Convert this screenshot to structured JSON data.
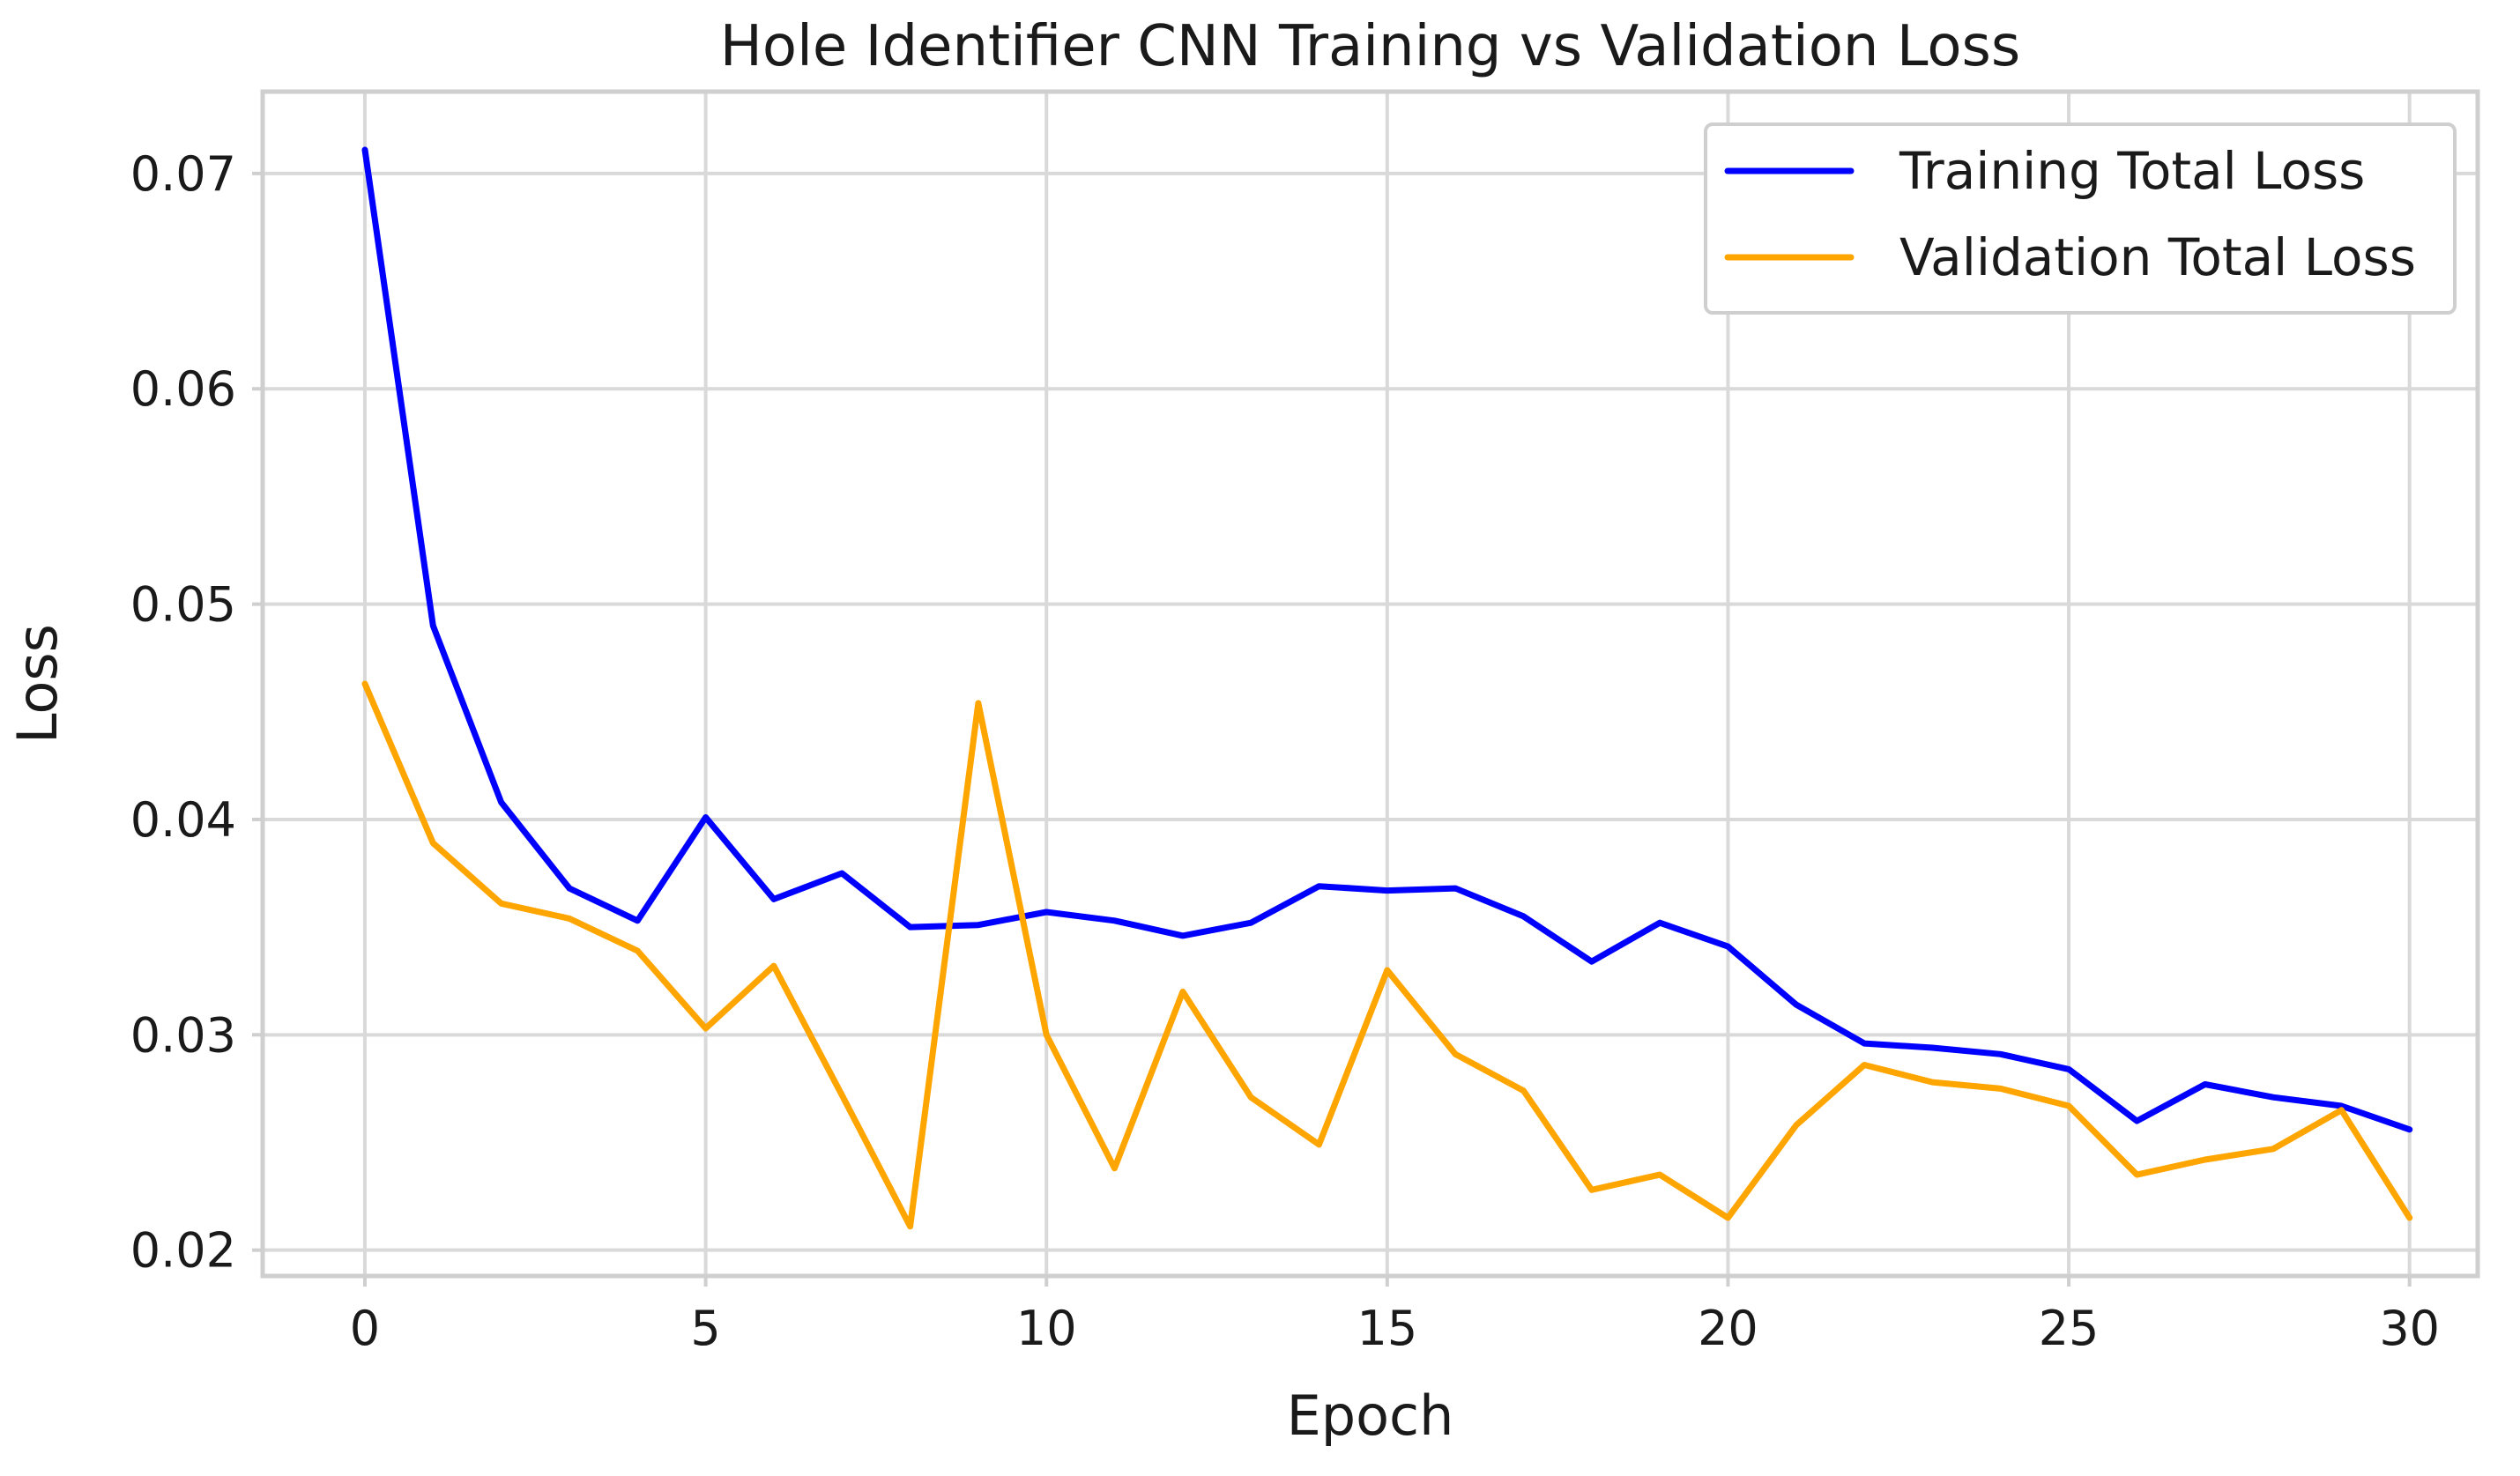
{
  "chart_data": {
    "type": "line",
    "title": "Hole Identifier CNN Training vs Validation Loss",
    "xlabel": "Epoch",
    "ylabel": "Loss",
    "xlim": [
      -1.5,
      31
    ],
    "ylim": [
      0.0188,
      0.0738
    ],
    "xticks": [
      0,
      5,
      10,
      15,
      20,
      25,
      30
    ],
    "xtick_labels": [
      "0",
      "5",
      "10",
      "15",
      "20",
      "25",
      "30"
    ],
    "yticks": [
      0.02,
      0.03,
      0.04,
      0.05,
      0.06,
      0.07
    ],
    "ytick_labels": [
      "0.02",
      "0.03",
      "0.04",
      "0.05",
      "0.06",
      "0.07"
    ],
    "grid": true,
    "legend_position": "top-right",
    "x": [
      0,
      1,
      2,
      3,
      4,
      5,
      6,
      7,
      8,
      9,
      10,
      11,
      12,
      13,
      14,
      15,
      16,
      17,
      18,
      19,
      20,
      21,
      22,
      23,
      24,
      25,
      26,
      27,
      28,
      29,
      30
    ],
    "series": [
      {
        "name": "Training Total Loss",
        "color": "#0000ff",
        "values": [
          0.0711,
          0.049,
          0.0408,
          0.0368,
          0.0353,
          0.0401,
          0.0363,
          0.0375,
          0.035,
          0.0351,
          0.0357,
          0.0353,
          0.0346,
          0.0352,
          0.0369,
          0.0367,
          0.0368,
          0.0355,
          0.0334,
          0.0352,
          0.0341,
          0.0314,
          0.0296,
          0.0294,
          0.0291,
          0.0284,
          0.026,
          0.0277,
          0.0271,
          0.0267,
          0.0256
        ]
      },
      {
        "name": "Validation Total Loss",
        "color": "#ffa500",
        "values": [
          0.0463,
          0.0389,
          0.0361,
          0.0354,
          0.0339,
          0.0303,
          0.0332,
          0.0272,
          0.0211,
          0.0454,
          0.03,
          0.0238,
          0.032,
          0.0271,
          0.0249,
          0.033,
          0.0291,
          0.0274,
          0.0228,
          0.0235,
          0.0215,
          0.0258,
          0.0286,
          0.0278,
          0.0275,
          0.0267,
          0.0235,
          0.0242,
          0.0247,
          0.0265,
          0.0215
        ]
      }
    ]
  }
}
